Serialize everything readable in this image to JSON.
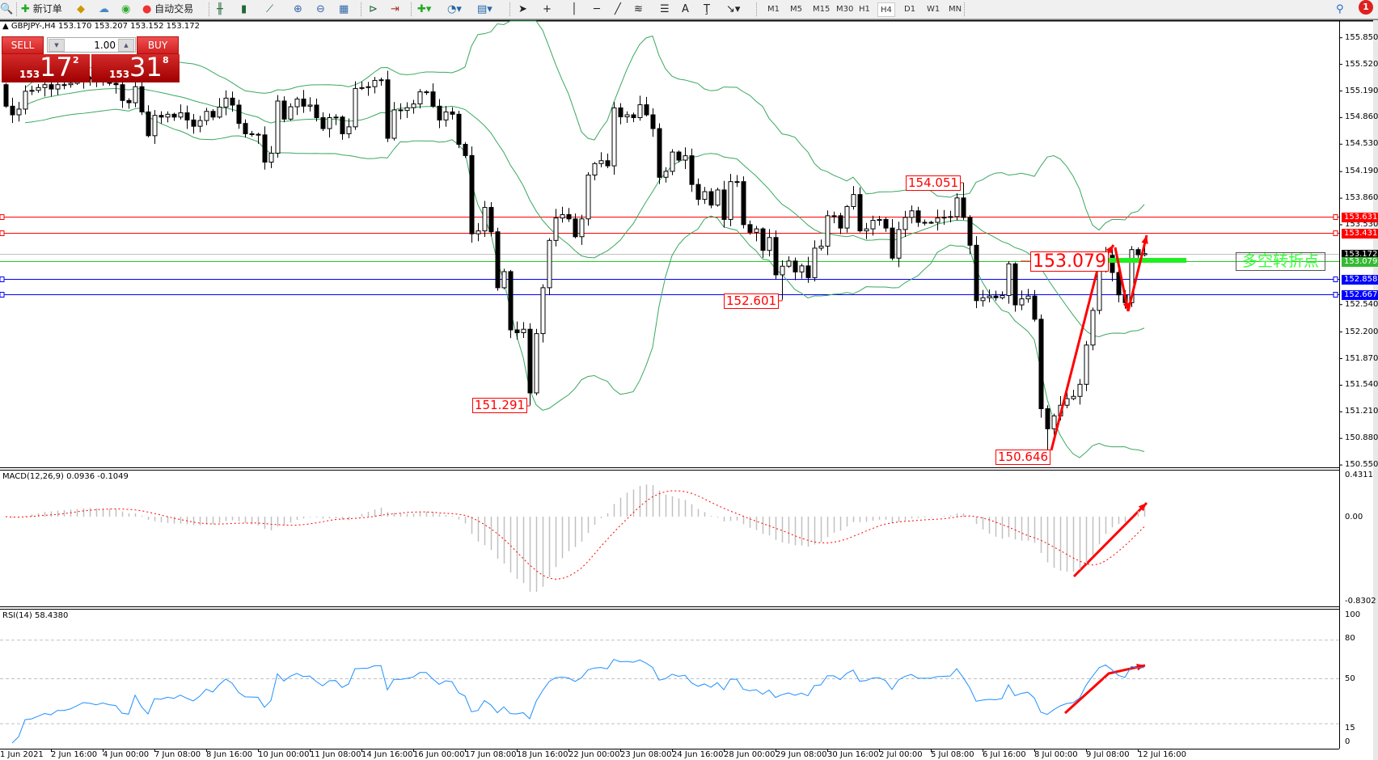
{
  "toolbar": {
    "new_order": "新订单",
    "auto_trading": "自动交易",
    "timeframes": [
      "M1",
      "M5",
      "M15",
      "M30",
      "H1",
      "H4",
      "D1",
      "W1",
      "MN"
    ],
    "active_timeframe": "H4",
    "notification_count": "1",
    "icons": [
      "zoom-icon",
      "new-order-icon",
      "gold-icon",
      "cloud-icon",
      "signals-icon",
      "auto-trading-icon",
      "bar-chart-icon",
      "candlestick-icon",
      "line-chart-icon",
      "zoom-in-icon",
      "zoom-out-icon",
      "tile-windows-icon",
      "auto-scroll-icon",
      "chart-shift-icon",
      "indicators-icon",
      "periods-icon",
      "templates-icon",
      "cursor-icon",
      "crosshair-icon",
      "vertical-line-icon",
      "horizontal-line-icon",
      "trendline-icon",
      "fibonacci-icon",
      "fibo-fan-icon",
      "text-icon",
      "text-label-icon",
      "arrows-icon",
      "search-icon",
      "notification-icon"
    ]
  },
  "chart": {
    "symbol_info": "GBPJPY-,H4  153.170 153.207 153.152 153.172"
  },
  "trade_panel": {
    "sell_label": "SELL",
    "buy_label": "BUY",
    "lot": "1.00",
    "sell_price": {
      "prefix": "153",
      "big": "17",
      "sup": "2"
    },
    "buy_price": {
      "prefix": "153",
      "big": "31",
      "sup": "8"
    }
  },
  "price_axis": [
    "155.850",
    "155.520",
    "155.190",
    "154.860",
    "154.530",
    "154.190",
    "153.860",
    "153.530",
    "152.540",
    "152.200",
    "151.870",
    "151.540",
    "151.210",
    "150.880",
    "150.550"
  ],
  "hlines": [
    {
      "price": "153.631",
      "color": "#ff0000"
    },
    {
      "price": "153.431",
      "color": "#ff0000"
    },
    {
      "price": "153.172",
      "color": "#c0c0c0",
      "label_bg": "#000000"
    },
    {
      "price": "153.079",
      "color": "#22cc22",
      "label_bg": "#33bb33"
    },
    {
      "price": "152.858",
      "color": "#0000ff"
    },
    {
      "price": "152.667",
      "color": "#0000ff"
    }
  ],
  "annotations": [
    {
      "text": "154.051",
      "bar": 148,
      "kind": "high"
    },
    {
      "text": "153.079",
      "kind": "level"
    },
    {
      "text": "152.601",
      "bar": 120,
      "kind": "low"
    },
    {
      "text": "151.291",
      "bar": 81,
      "kind": "low"
    },
    {
      "text": "150.646",
      "bar": 161,
      "kind": "low"
    }
  ],
  "signal_label": "多空转折点",
  "colors": {
    "bollinger": "#3aa860",
    "arrow": "#ff0000",
    "macd_hist": "#c0c0c0",
    "macd_signal": "#ff0000",
    "rsi": "#1e90ff",
    "signal_bar": "#22ee22"
  },
  "macd": {
    "title": "MACD(12,26,9) 0.0936 -0.1049",
    "axis": [
      "0.4311",
      "0.00",
      "-0.8302"
    ]
  },
  "rsi": {
    "title": "RSI(14) 58.4380",
    "axis": [
      "100",
      "80",
      "50",
      "15",
      "0"
    ]
  },
  "time_axis": [
    "1 Jun 2021",
    "2 Jun 16:00",
    "4 Jun 00:00",
    "7 Jun 08:00",
    "8 Jun 16:00",
    "10 Jun 00:00",
    "11 Jun 08:00",
    "14 Jun 16:00",
    "16 Jun 00:00",
    "17 Jun 08:00",
    "18 Jun 16:00",
    "22 Jun 00:00",
    "23 Jun 08:00",
    "24 Jun 16:00",
    "28 Jun 00:00",
    "29 Jun 08:00",
    "30 Jun 16:00",
    "2 Jul 00:00",
    "5 Jul 08:00",
    "6 Jul 16:00",
    "8 Jul 00:00",
    "9 Jul 08:00",
    "12 Jul 16:00"
  ],
  "chart_data": {
    "type": "candlestick",
    "symbol": "GBPJPY",
    "timeframe": "H4",
    "indicators": [
      "Bollinger Bands(20,2)",
      "MACD(12,26,9)",
      "RSI(14)"
    ],
    "first_open": 155.268,
    "closes": [
      155.001,
      154.894,
      154.965,
      155.186,
      155.197,
      155.232,
      155.268,
      155.214,
      155.268,
      155.268,
      155.285,
      155.321,
      155.357,
      155.339,
      155.303,
      155.321,
      155.285,
      155.268,
      155.072,
      155.044,
      155.243,
      154.93,
      154.635,
      154.887,
      154.866,
      154.901,
      154.866,
      154.919,
      154.83,
      154.752,
      154.823,
      154.937,
      154.866,
      154.99,
      155.101,
      155.015,
      154.787,
      154.659,
      154.652,
      154.645,
      154.307,
      154.418,
      155.065,
      154.841,
      154.994,
      155.09,
      155.001,
      155.015,
      154.859,
      154.723,
      154.859,
      154.866,
      154.659,
      154.745,
      155.221,
      155.232,
      155.243,
      155.321,
      155.328,
      154.603,
      154.955,
      154.948,
      154.983,
      155.029,
      155.179,
      155.179,
      155.001,
      154.83,
      154.93,
      154.901,
      154.528,
      154.389,
      153.418,
      153.454,
      153.745,
      153.443,
      152.749,
      152.949,
      152.226,
      152.191,
      152.234,
      151.444,
      152.18,
      152.749,
      153.336,
      153.614,
      153.656,
      153.603,
      153.382,
      153.603,
      154.147,
      154.289,
      154.325,
      154.261,
      154.98,
      154.869,
      154.894,
      154.859,
      155.019,
      154.894,
      154.723,
      154.119,
      154.193,
      154.432,
      154.332,
      154.386,
      154.03,
      153.845,
      153.941,
      153.774,
      153.962,
      153.596,
      154.065,
      154.065,
      153.532,
      153.436,
      153.479,
      153.212,
      153.372,
      152.909,
      153.016,
      153.08,
      152.945,
      153.02,
      152.874,
      153.24,
      153.265,
      153.642,
      153.642,
      153.489,
      153.756,
      153.905,
      153.454,
      153.479,
      153.585,
      153.596,
      153.489,
      153.116,
      153.471,
      153.621,
      153.703,
      153.56,
      153.56,
      153.56,
      153.614,
      153.624,
      153.631,
      153.863,
      153.621,
      153.276,
      152.589,
      152.625,
      152.646,
      152.625,
      152.653,
      153.045,
      152.536,
      152.611,
      152.646,
      152.358,
      151.248,
      150.999,
      151.159,
      151.291,
      151.373,
      151.401,
      151.551,
      152.038,
      152.468,
      152.966,
      153.151,
      152.938,
      152.66,
      152.564,
      153.222,
      153.158,
      153.172
    ],
    "price_range": [
      150.55,
      155.85
    ],
    "macd_range": [
      -0.8302,
      0.4311
    ],
    "rsi_levels": [
      15,
      50,
      80
    ]
  }
}
